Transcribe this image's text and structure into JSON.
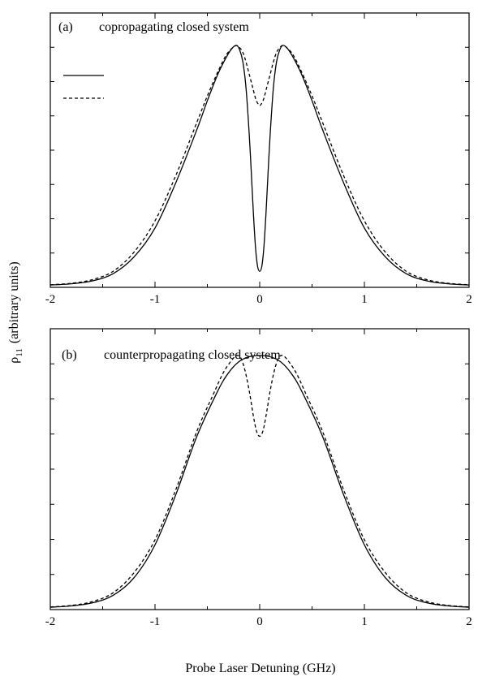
{
  "figure": {
    "ylabel_main": "ρ",
    "ylabel_sub": "11",
    "ylabel_rest": "(arbitrary units)",
    "xlabel": "Probe Laser Detuning  (GHz)"
  },
  "chart_data": [
    {
      "type": "line",
      "panel_label": "(a)",
      "title": "copropagating closed system",
      "xlim": [
        -2,
        2
      ],
      "xticks": [
        -2,
        -1,
        0,
        1,
        2
      ],
      "xtick_labels": [
        "-2",
        "-1",
        "0",
        "1",
        "2"
      ],
      "ylim": [
        0,
        1.0
      ],
      "legend": "top-left",
      "series": [
        {
          "style": "solid",
          "x": [
            -2.0,
            -1.8,
            -1.6,
            -1.4,
            -1.2,
            -1.0,
            -0.8,
            -0.6,
            -0.5,
            -0.4,
            -0.32,
            -0.26,
            -0.22,
            -0.19,
            -0.16,
            -0.13,
            -0.1,
            -0.08,
            -0.06,
            -0.04,
            -0.02,
            0.0,
            0.02,
            0.04,
            0.06,
            0.08,
            0.1,
            0.13,
            0.16,
            0.19,
            0.22,
            0.26,
            0.32,
            0.4,
            0.5,
            0.6,
            0.8,
            1.0,
            1.2,
            1.4,
            1.6,
            1.8,
            2.0
          ],
          "y": [
            0.003,
            0.008,
            0.02,
            0.05,
            0.12,
            0.24,
            0.43,
            0.65,
            0.77,
            0.88,
            0.95,
            0.99,
            1.0,
            0.98,
            0.93,
            0.82,
            0.63,
            0.47,
            0.3,
            0.16,
            0.08,
            0.06,
            0.08,
            0.16,
            0.3,
            0.47,
            0.63,
            0.82,
            0.93,
            0.98,
            1.0,
            0.99,
            0.95,
            0.88,
            0.77,
            0.65,
            0.43,
            0.24,
            0.12,
            0.05,
            0.02,
            0.008,
            0.003
          ]
        },
        {
          "style": "dashed",
          "x": [
            -2.0,
            -1.8,
            -1.6,
            -1.4,
            -1.2,
            -1.0,
            -0.8,
            -0.6,
            -0.5,
            -0.4,
            -0.32,
            -0.26,
            -0.22,
            -0.19,
            -0.16,
            -0.13,
            -0.1,
            -0.07,
            -0.04,
            -0.02,
            0.0,
            0.02,
            0.04,
            0.07,
            0.1,
            0.13,
            0.16,
            0.19,
            0.22,
            0.26,
            0.32,
            0.4,
            0.5,
            0.6,
            0.8,
            1.0,
            1.2,
            1.4,
            1.6,
            1.8,
            2.0
          ],
          "y": [
            0.004,
            0.01,
            0.025,
            0.06,
            0.14,
            0.27,
            0.46,
            0.68,
            0.79,
            0.89,
            0.96,
            0.99,
            1.0,
            0.99,
            0.97,
            0.93,
            0.88,
            0.83,
            0.78,
            0.76,
            0.75,
            0.76,
            0.78,
            0.83,
            0.88,
            0.93,
            0.97,
            0.99,
            1.0,
            0.99,
            0.96,
            0.89,
            0.79,
            0.68,
            0.46,
            0.27,
            0.14,
            0.06,
            0.025,
            0.01,
            0.004
          ]
        }
      ]
    },
    {
      "type": "line",
      "panel_label": "(b)",
      "title": "counterpropagating closed system",
      "xlim": [
        -2,
        2
      ],
      "xticks": [
        -2,
        -1,
        0,
        1,
        2
      ],
      "xtick_labels": [
        "-2",
        "-1",
        "0",
        "1",
        "2"
      ],
      "ylim": [
        0,
        1.0
      ],
      "series": [
        {
          "style": "solid",
          "x": [
            -2.0,
            -1.8,
            -1.6,
            -1.4,
            -1.2,
            -1.0,
            -0.8,
            -0.6,
            -0.4,
            -0.3,
            -0.2,
            -0.1,
            0.0,
            0.1,
            0.2,
            0.3,
            0.4,
            0.6,
            0.8,
            1.0,
            1.2,
            1.4,
            1.6,
            1.8,
            2.0
          ],
          "y": [
            0.003,
            0.008,
            0.02,
            0.05,
            0.12,
            0.25,
            0.45,
            0.68,
            0.86,
            0.93,
            0.975,
            0.995,
            1.0,
            0.995,
            0.975,
            0.93,
            0.86,
            0.68,
            0.45,
            0.25,
            0.12,
            0.05,
            0.02,
            0.008,
            0.003
          ]
        },
        {
          "style": "dashed",
          "x": [
            -2.0,
            -1.8,
            -1.6,
            -1.4,
            -1.2,
            -1.0,
            -0.8,
            -0.6,
            -0.45,
            -0.35,
            -0.27,
            -0.22,
            -0.18,
            -0.14,
            -0.1,
            -0.06,
            -0.03,
            0.0,
            0.03,
            0.06,
            0.1,
            0.14,
            0.18,
            0.22,
            0.27,
            0.35,
            0.45,
            0.6,
            0.8,
            1.0,
            1.2,
            1.4,
            1.6,
            1.8,
            2.0
          ],
          "y": [
            0.004,
            0.01,
            0.025,
            0.06,
            0.14,
            0.27,
            0.47,
            0.7,
            0.84,
            0.93,
            0.98,
            1.0,
            0.99,
            0.94,
            0.86,
            0.76,
            0.7,
            0.68,
            0.7,
            0.76,
            0.86,
            0.94,
            0.99,
            1.0,
            0.98,
            0.93,
            0.84,
            0.7,
            0.47,
            0.27,
            0.14,
            0.06,
            0.025,
            0.01,
            0.004
          ]
        }
      ]
    }
  ]
}
